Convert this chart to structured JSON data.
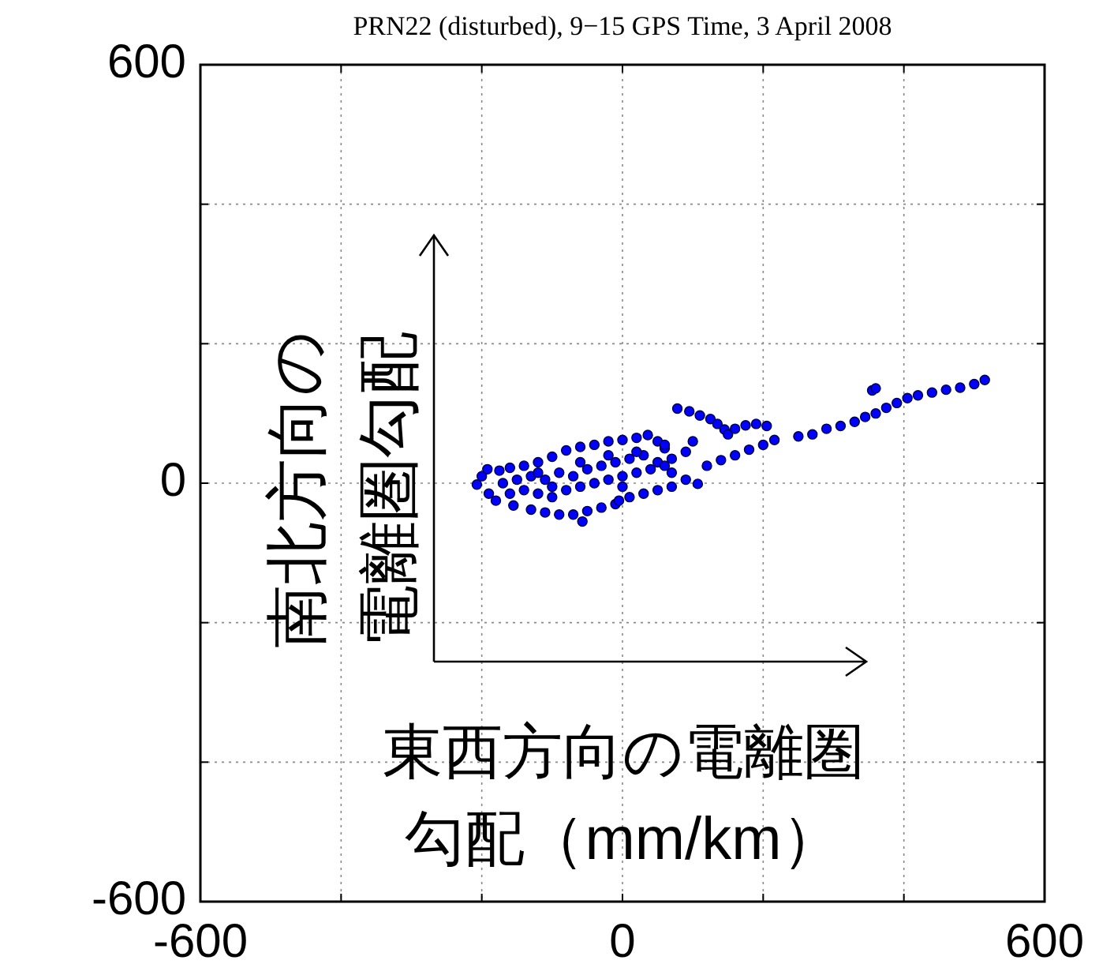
{
  "chart_data": {
    "type": "scatter",
    "title": "PRN22 (disturbed), 9−15 GPS Time, 3 April 2008",
    "xlabel": "東西方向の電離圏勾配（mm/km）",
    "ylabel": "南北方向の電離圏勾配",
    "xlim": [
      -600,
      600
    ],
    "ylim": [
      -600,
      600
    ],
    "xticks": [
      -600,
      {
        "value": -400,
        "label": null
      },
      {
        "value": -200,
        "label": null
      },
      0,
      {
        "value": 200,
        "label": null
      },
      {
        "value": 400,
        "label": null
      },
      600
    ],
    "yticks": [
      -600,
      {
        "value": -400,
        "label": null
      },
      {
        "value": -200,
        "label": null
      },
      0,
      {
        "value": 200,
        "label": null
      },
      {
        "value": 400,
        "label": null
      },
      600
    ],
    "grid": true,
    "marker": "circle",
    "series": [
      {
        "color": "#0000ff",
        "x": [
          250,
          270,
          290,
          310,
          330,
          345,
          360,
          375,
          390,
          405,
          420,
          440,
          460,
          480,
          500,
          515,
          355,
          360,
          78,
          95,
          110,
          125,
          135,
          145,
          150,
          160,
          175,
          190,
          205,
          216,
          200,
          180,
          160,
          140,
          120,
          107,
          90,
          70,
          -207,
          -200,
          -192,
          -175,
          -160,
          -140,
          -120,
          -100,
          -80,
          -60,
          -40,
          -20,
          0,
          20,
          36,
          50,
          60,
          -190,
          -180,
          -155,
          -130,
          -110,
          -90,
          -70,
          -57,
          -50,
          -30,
          -10,
          -5,
          10,
          30,
          50,
          70,
          -170,
          -150,
          -130,
          -110,
          -90,
          -70,
          -50,
          -30,
          -10,
          10,
          30,
          50,
          70,
          90,
          -140,
          -120,
          -100,
          -80,
          -60,
          -40,
          -20,
          0,
          20,
          40,
          60,
          -100,
          -60,
          -20,
          20,
          60,
          100,
          0,
          -120,
          -160
        ],
        "values": [
          67,
          70,
          78,
          82,
          88,
          95,
          100,
          108,
          115,
          122,
          126,
          130,
          134,
          137,
          142,
          148,
          133,
          136,
          107,
          103,
          97,
          92,
          85,
          77,
          70,
          78,
          83,
          85,
          82,
          62,
          55,
          48,
          40,
          33,
          25,
          -1,
          5,
          15,
          -2,
          10,
          20,
          18,
          22,
          25,
          30,
          38,
          47,
          52,
          55,
          60,
          62,
          65,
          69,
          60,
          50,
          -15,
          -25,
          -32,
          -38,
          -42,
          -45,
          -45,
          -55,
          -40,
          -35,
          -30,
          -25,
          -20,
          -15,
          -10,
          -5,
          0,
          5,
          10,
          5,
          15,
          10,
          20,
          25,
          30,
          35,
          40,
          30,
          35,
          45,
          -10,
          -15,
          -20,
          -10,
          -5,
          0,
          5,
          10,
          15,
          20,
          25,
          -5,
          30,
          40,
          45,
          55,
          60,
          -5,
          15,
          -15
        ]
      }
    ]
  }
}
